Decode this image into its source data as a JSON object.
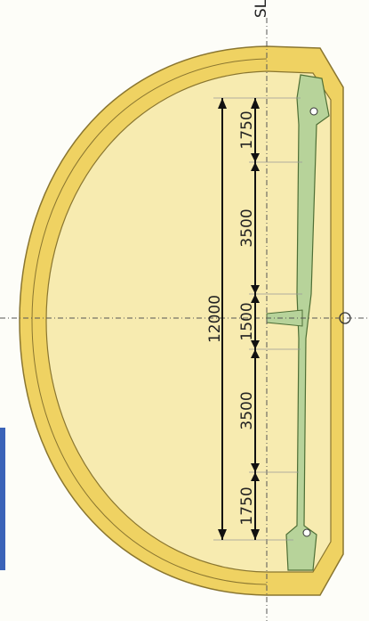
{
  "reference_label": "SL",
  "dimensions": {
    "total": "12000",
    "segments": [
      "1750",
      "3500",
      "1500",
      "3500",
      "1750"
    ]
  }
}
